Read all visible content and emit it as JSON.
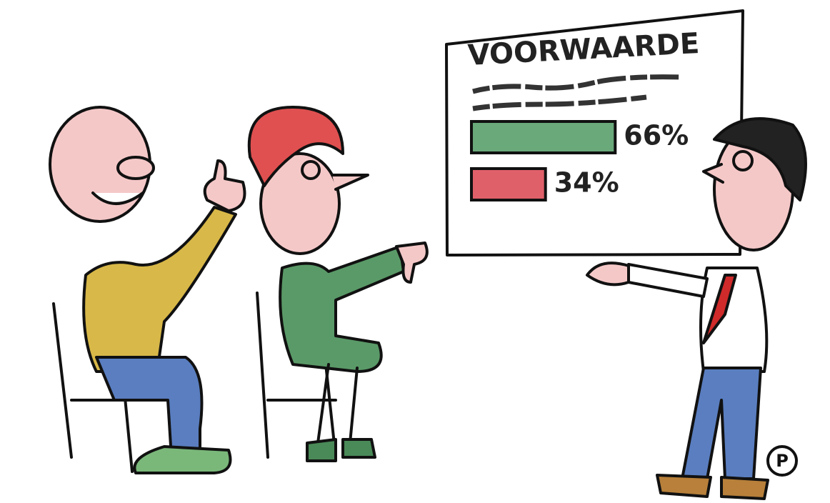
{
  "chart_data": {
    "type": "bar",
    "orientation": "horizontal",
    "title": "VOORWAARDE",
    "categories": [
      null,
      null
    ],
    "values": [
      66,
      34
    ],
    "value_labels": [
      "66%",
      "34%"
    ],
    "colors": [
      "#6aa97a",
      "#e0606a"
    ]
  },
  "signature": "P"
}
